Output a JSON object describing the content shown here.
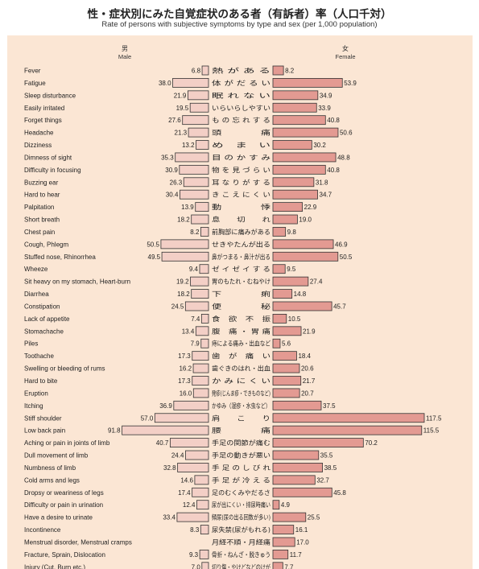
{
  "title": "性・症状別にみた自覚症状のある者（有訴者）率（人口千対）",
  "subtitle": "Rate of persons with subjective symptoms by type and sex (per 1,000 population)",
  "colors": {
    "background": "#fbe6d4",
    "male_bar": "#f3cfc6",
    "female_bar": "#e39a92",
    "bar_stroke": "#333333"
  },
  "chart_data": {
    "type": "bar",
    "orientation": "horizontal",
    "layout": "back-to-back",
    "male_header": {
      "jp": "男",
      "en": "Male"
    },
    "female_header": {
      "jp": "女",
      "en": "Female"
    },
    "categories_en": [
      "Fever",
      "Fatigue",
      "Sleep disturbance",
      "Easily irritated",
      "Forget things",
      "Headache",
      "Dizziness",
      "Dimness of sight",
      "Difficulty in focusing",
      "Buzzing ear",
      "Hard to hear",
      "Palpitation",
      "Short breath",
      "Chest pain",
      "Cough, Phlegm",
      "Stuffed nose, Rhinorrhea",
      "Wheeze",
      "Sit heavy on my stomach, Heart-burn",
      "Diarrhea",
      "Constipation",
      "Lack of appetite",
      "Stomachache",
      "Piles",
      "Toothache",
      "Swelling or bleeding of rums",
      "Hard to bite",
      "Eruption",
      "Itching",
      "Stiff shoulder",
      "Low back pain",
      "Aching or pain in joints of limb",
      "Dull movement of limb",
      "Numbness of limb",
      "Cold arms and legs",
      "Dropsy or weariness of legs",
      "Difficulty or pain in urination",
      "Have a desire to urinate",
      "Incontinence",
      "Menstrual disorder, Menstrual cramps",
      "Fracture, Sprain, Dislocation",
      "Injury (Cut, Burn etc.)"
    ],
    "categories_jp": [
      "熱 が あ る",
      "体 が だ る い",
      "眠 れ な い",
      "いらいらしやすい",
      "も の 忘 れ す る",
      "頭　　　　痛",
      "め　ま　い",
      "目 の か す み",
      "物 を 見 づ ら い",
      "耳 な り が す る",
      "き こ え に く い",
      "動　　　　悸",
      "息　　切　　れ",
      "前胸部に痛みがある",
      "せきやたんが出る",
      "鼻がつまる・鼻汁が出る",
      "ゼ イ ゼ イ す る",
      "胃のもたれ・むねやけ",
      "下　　　　痢",
      "便　　　　秘",
      "食　欲　不　振",
      "腹　痛 ・ 胃 痛",
      "痔による痛み・出血など",
      "歯　が　痛　い",
      "歯ぐきのはれ・出血",
      "か み に く い",
      "発疹(じんま疹・できものなど)",
      "かゆみ（湿疹・水虫など）",
      "肩　　こ　　り",
      "腰　　　　痛",
      "手足の関節が痛む",
      "手足の動きが悪い",
      "手 足 の し び れ",
      "手 足 が 冷 え る",
      "足のむくみやだるさ",
      "尿が出にくい・排尿時痛い",
      "頻尿(尿の出る回数が多い)",
      "尿失禁(尿がもれる)",
      "月経不順・月経痛",
      "骨折・ねんざ・脱きゅう",
      "切り傷・やけどなどのけが"
    ],
    "male": [
      6.8,
      38.0,
      21.9,
      19.5,
      27.6,
      21.3,
      13.2,
      35.3,
      30.9,
      26.3,
      30.4,
      13.9,
      18.2,
      8.2,
      50.5,
      49.5,
      9.4,
      19.2,
      18.2,
      24.5,
      7.4,
      13.4,
      7.9,
      17.3,
      16.2,
      17.3,
      16.0,
      36.9,
      57.0,
      91.8,
      40.7,
      24.4,
      32.8,
      14.6,
      17.4,
      12.4,
      33.4,
      8.3,
      null,
      9.3,
      7.0
    ],
    "female": [
      8.2,
      53.9,
      34.9,
      33.9,
      40.8,
      50.6,
      30.2,
      48.8,
      40.8,
      31.8,
      34.7,
      22.9,
      19.0,
      9.8,
      46.9,
      50.5,
      9.5,
      27.4,
      14.8,
      45.7,
      10.5,
      21.9,
      5.6,
      18.4,
      20.6,
      21.7,
      20.7,
      37.5,
      117.5,
      115.5,
      70.2,
      35.5,
      38.5,
      32.7,
      45.8,
      4.9,
      25.5,
      16.1,
      17.0,
      11.7,
      7.7
    ],
    "male_labels": [
      "6.8",
      "38.0",
      "21.9",
      "19.5",
      "27.6",
      "21.3",
      "13.2",
      "35.3",
      "30.9",
      "26.3",
      "30.4",
      "13.9",
      "18.2",
      "8.2",
      "50.5",
      "49.5",
      "9.4",
      "19.2",
      "18.2",
      "24.5",
      "7.4",
      "13.4",
      "7.9",
      "17.3",
      "16.2",
      "17.3",
      "16.0",
      "36.9",
      "57.0",
      "91.8",
      "40.7",
      "24.4",
      "32.8",
      "14.6",
      "17.4",
      "12.4",
      "33.4",
      "8.3",
      "",
      "9.3",
      "7.0"
    ],
    "female_labels": [
      "8.2",
      "53.9",
      "34.9",
      "33.9",
      "40.8",
      "50.6",
      "30.2",
      "48.8",
      "40.8",
      "31.8",
      "34.7",
      "22.9",
      "19.0",
      "9.8",
      "46.9",
      "50.5",
      "9.5",
      "27.4",
      "14.8",
      "45.7",
      "10.5",
      "21.9",
      "5.6",
      "18.4",
      "20.6",
      "21.7",
      "20.7",
      "37.5",
      "117.5",
      "115.5",
      "70.2",
      "35.5",
      "38.5",
      "32.7",
      "45.8",
      "4.9",
      "25.5",
      "16.1",
      "17.0",
      "11.7",
      "7.7"
    ]
  }
}
